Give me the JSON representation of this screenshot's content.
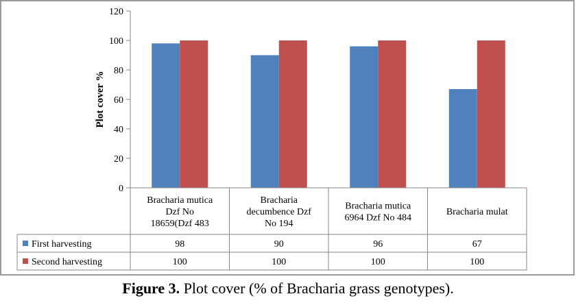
{
  "chart_data": {
    "type": "bar",
    "ylabel": "Plot cover  %",
    "ylim": [
      0,
      120
    ],
    "yticks": [
      0,
      20,
      40,
      60,
      80,
      100,
      120
    ],
    "grid": false,
    "legend": "data-table",
    "categories": [
      [
        "Bracharia mutica",
        "Dzf No",
        "18659(Dzf 483"
      ],
      [
        "Bracharia",
        "decumbence Dzf",
        "No 194"
      ],
      [
        "Bracharia mutica",
        "6964 Dzf No 484"
      ],
      [
        "Bracharia mulat"
      ]
    ],
    "series": [
      {
        "name": "First harvesting",
        "color": "#4F81BD",
        "values": [
          98,
          90,
          96,
          67
        ]
      },
      {
        "name": "Second harvesting",
        "color": "#C0504D",
        "values": [
          100,
          100,
          100,
          100
        ]
      }
    ]
  },
  "caption": {
    "label": "Figure 3.",
    "text": " Plot cover (% of Bracharia grass genotypes)."
  }
}
